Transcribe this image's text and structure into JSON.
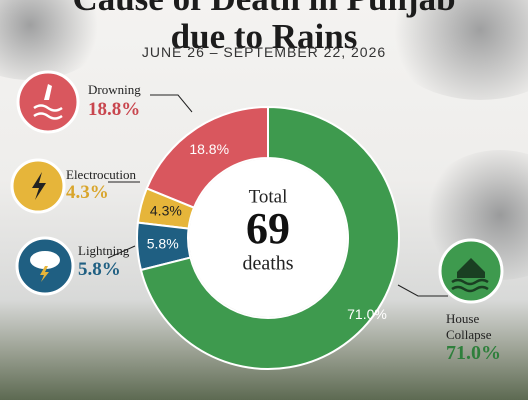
{
  "chart_data": {
    "type": "donut",
    "title": "Cause of Death in Punjab due to Rains",
    "subtitle": "JUNE 26 – SEPTEMBER 22, 2026",
    "categories": [
      "Drowning",
      "Electrocution",
      "Lightning",
      "House Collapse"
    ],
    "values": [
      18.8,
      4.3,
      5.8,
      71.0
    ],
    "value_labels": [
      "18.8%",
      "4.3%",
      "5.8%",
      "71.0%"
    ],
    "colors": [
      "#d9575e",
      "#e6b53a",
      "#1f5f82",
      "#3e9a4e"
    ],
    "center": {
      "label": "Total",
      "value": 69,
      "unit": "deaths"
    }
  }
}
